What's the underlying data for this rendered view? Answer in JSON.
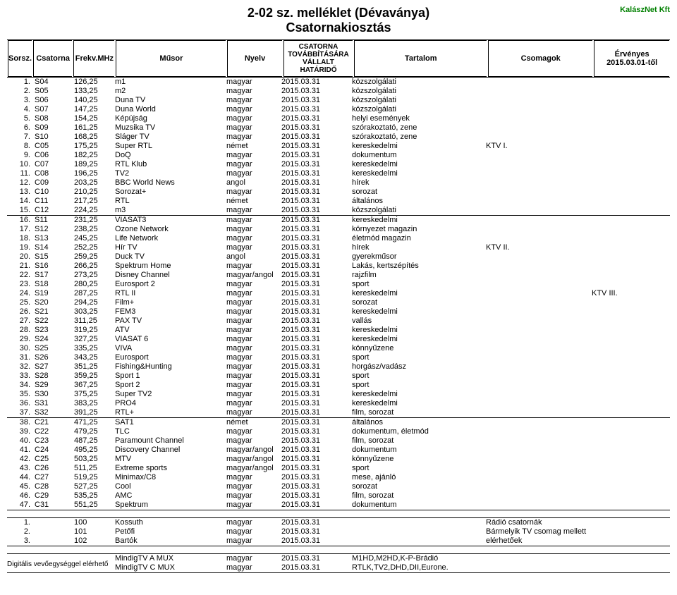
{
  "title1": "2-02 sz. melléklet (Dévaványa)",
  "title2": "Csatornakiosztás",
  "company": "KalászNet Kft",
  "ervenyes": "Érvényes 2015.03.01-től",
  "header": {
    "sorsz": "Sorsz.",
    "csatorna": "Csatorna",
    "frekv": "Frekv.MHz",
    "musor": "Műsor",
    "nyelv": "Nyelv",
    "hatarido": "CSATORNA TOVÁBBÍTÁSÁRA VÁLLALT HATÁRIDŐ",
    "tartalom": "Tartalom",
    "csomagok": "Csomagok"
  },
  "rows1": [
    {
      "n": "1.",
      "cs": "S04",
      "f": "126,25",
      "m": "m1",
      "ny": "magyar",
      "h": "2015.03.31",
      "t": "közszolgálati",
      "p": ""
    },
    {
      "n": "2.",
      "cs": "S05",
      "f": "133,25",
      "m": "m2",
      "ny": "magyar",
      "h": "2015.03.31",
      "t": "közszolgálati",
      "p": ""
    },
    {
      "n": "3.",
      "cs": "S06",
      "f": "140,25",
      "m": "Duna TV",
      "ny": "magyar",
      "h": "2015.03.31",
      "t": "közszolgálati",
      "p": ""
    },
    {
      "n": "4.",
      "cs": "S07",
      "f": "147,25",
      "m": "Duna World",
      "ny": "magyar",
      "h": "2015.03.31",
      "t": "közszolgálati",
      "p": ""
    },
    {
      "n": "5.",
      "cs": "S08",
      "f": "154,25",
      "m": "Képújság",
      "ny": "magyar",
      "h": "2015.03.31",
      "t": "helyi események",
      "p": ""
    },
    {
      "n": "6.",
      "cs": "S09",
      "f": "161,25",
      "m": "Muzsika TV",
      "ny": "magyar",
      "h": "2015.03.31",
      "t": "szórakoztató, zene",
      "p": ""
    },
    {
      "n": "7.",
      "cs": "S10",
      "f": "168,25",
      "m": "Sláger TV",
      "ny": "magyar",
      "h": "2015.03.31",
      "t": "szórakoztató, zene",
      "p": ""
    },
    {
      "n": "8.",
      "cs": "C05",
      "f": "175,25",
      "m": "Super RTL",
      "ny": "német",
      "h": "2015.03.31",
      "t": "kereskedelmi",
      "p": "KTV I."
    },
    {
      "n": "9.",
      "cs": "C06",
      "f": "182,25",
      "m": "DoQ",
      "ny": "magyar",
      "h": "2015.03.31",
      "t": "dokumentum",
      "p": ""
    },
    {
      "n": "10.",
      "cs": "C07",
      "f": "189,25",
      "m": "RTL Klub",
      "ny": "magyar",
      "h": "2015.03.31",
      "t": "kereskedelmi",
      "p": ""
    },
    {
      "n": "11.",
      "cs": "C08",
      "f": "196,25",
      "m": "TV2",
      "ny": "magyar",
      "h": "2015.03.31",
      "t": "kereskedelmi",
      "p": ""
    },
    {
      "n": "12.",
      "cs": "C09",
      "f": "203,25",
      "m": "BBC World News",
      "ny": "angol",
      "h": "2015.03.31",
      "t": "hírek",
      "p": ""
    },
    {
      "n": "13.",
      "cs": "C10",
      "f": "210,25",
      "m": "Sorozat+",
      "ny": "magyar",
      "h": "2015.03.31",
      "t": "sorozat",
      "p": ""
    },
    {
      "n": "14.",
      "cs": "C11",
      "f": "217,25",
      "m": "RTL",
      "ny": "német",
      "h": "2015.03.31",
      "t": "általános",
      "p": ""
    },
    {
      "n": "15.",
      "cs": "C12",
      "f": "224,25",
      "m": "m3",
      "ny": "magyar",
      "h": "2015.03.31",
      "t": "közszolgálati",
      "p": ""
    }
  ],
  "rows2": [
    {
      "n": "16.",
      "cs": "S11",
      "f": "231,25",
      "m": "VIASAT3",
      "ny": "magyar",
      "h": "2015.03.31",
      "t": "kereskedelmi",
      "p": "",
      "e": ""
    },
    {
      "n": "17.",
      "cs": "S12",
      "f": "238,25",
      "m": "Ozone Network",
      "ny": "magyar",
      "h": "2015.03.31",
      "t": "környezet magazin",
      "p": "",
      "e": ""
    },
    {
      "n": "18.",
      "cs": "S13",
      "f": "245,25",
      "m": "Life Network",
      "ny": "magyar",
      "h": "2015.03.31",
      "t": "életmód magazin",
      "p": "",
      "e": ""
    },
    {
      "n": "19.",
      "cs": "S14",
      "f": "252,25",
      "m": "Hír TV",
      "ny": "magyar",
      "h": "2015.03.31",
      "t": "hírek",
      "p": "KTV II.",
      "e": ""
    },
    {
      "n": "20.",
      "cs": "S15",
      "f": "259,25",
      "m": "Duck TV",
      "ny": "angol",
      "h": "2015.03.31",
      "t": "gyerekműsor",
      "p": "",
      "e": ""
    },
    {
      "n": "21.",
      "cs": "S16",
      "f": "266,25",
      "m": "Spektrum Home",
      "ny": "magyar",
      "h": "2015.03.31",
      "t": "Lakás, kertszépítés",
      "p": "",
      "e": ""
    },
    {
      "n": "22.",
      "cs": "S17",
      "f": "273,25",
      "m": "Disney Channel",
      "ny": "magyar/angol",
      "h": "2015.03.31",
      "t": "rajzfilm",
      "p": "",
      "e": ""
    },
    {
      "n": "23.",
      "cs": "S18",
      "f": "280,25",
      "m": "Eurosport 2",
      "ny": "magyar",
      "h": "2015.03.31",
      "t": "sport",
      "p": "",
      "e": ""
    },
    {
      "n": "24.",
      "cs": "S19",
      "f": "287,25",
      "m": "RTL II",
      "ny": "magyar",
      "h": "2015.03.31",
      "t": "kereskedelmi",
      "p": "",
      "e": "KTV III."
    },
    {
      "n": "25.",
      "cs": "S20",
      "f": "294,25",
      "m": "Film+",
      "ny": "magyar",
      "h": "2015.03.31",
      "t": "sorozat",
      "p": "",
      "e": ""
    },
    {
      "n": "26.",
      "cs": "S21",
      "f": "303,25",
      "m": "FEM3",
      "ny": "magyar",
      "h": "2015.03.31",
      "t": "kereskedelmi",
      "p": "",
      "e": ""
    },
    {
      "n": "27.",
      "cs": "S22",
      "f": "311,25",
      "m": "PAX TV",
      "ny": "magyar",
      "h": "2015.03.31",
      "t": "vallás",
      "p": "",
      "e": ""
    },
    {
      "n": "28.",
      "cs": "S23",
      "f": "319,25",
      "m": "ATV",
      "ny": "magyar",
      "h": "2015.03.31",
      "t": "kereskedelmi",
      "p": "",
      "e": ""
    },
    {
      "n": "29.",
      "cs": "S24",
      "f": "327,25",
      "m": "VIASAT 6",
      "ny": "magyar",
      "h": "2015.03.31",
      "t": "kereskedelmi",
      "p": "",
      "e": ""
    },
    {
      "n": "30.",
      "cs": "S25",
      "f": "335,25",
      "m": "VIVA",
      "ny": "magyar",
      "h": "2015.03.31",
      "t": "könnyűzene",
      "p": "",
      "e": ""
    },
    {
      "n": "31.",
      "cs": "S26",
      "f": "343,25",
      "m": "Eurosport",
      "ny": "magyar",
      "h": "2015.03.31",
      "t": "sport",
      "p": "",
      "e": ""
    },
    {
      "n": "32.",
      "cs": "S27",
      "f": "351,25",
      "m": "Fishing&Hunting",
      "ny": "magyar",
      "h": "2015.03.31",
      "t": "horgász/vadász",
      "p": "",
      "e": ""
    },
    {
      "n": "33.",
      "cs": "S28",
      "f": "359,25",
      "m": "Sport 1",
      "ny": "magyar",
      "h": "2015.03.31",
      "t": "sport",
      "p": "",
      "e": ""
    },
    {
      "n": "34.",
      "cs": "S29",
      "f": "367,25",
      "m": "Sport 2",
      "ny": "magyar",
      "h": "2015.03.31",
      "t": "sport",
      "p": "",
      "e": ""
    },
    {
      "n": "35.",
      "cs": "S30",
      "f": "375,25",
      "m": "Super TV2",
      "ny": "magyar",
      "h": "2015.03.31",
      "t": "kereskedelmi",
      "p": "",
      "e": ""
    },
    {
      "n": "36.",
      "cs": "S31",
      "f": "383,25",
      "m": "PRO4",
      "ny": "magyar",
      "h": "2015.03.31",
      "t": "kereskedelmi",
      "p": "",
      "e": ""
    },
    {
      "n": "37.",
      "cs": "S32",
      "f": "391,25",
      "m": "RTL+",
      "ny": "magyar",
      "h": "2015.03.31",
      "t": "film, sorozat",
      "p": "",
      "e": ""
    }
  ],
  "rows3": [
    {
      "n": "38.",
      "cs": "C21",
      "f": "471,25",
      "m": "SAT1",
      "ny": "német",
      "h": "2015.03.31",
      "t": "általános",
      "p": ""
    },
    {
      "n": "39.",
      "cs": "C22",
      "f": "479,25",
      "m": "TLC",
      "ny": "magyar",
      "h": "2015.03.31",
      "t": "dokumentum, életmód",
      "p": ""
    },
    {
      "n": "40.",
      "cs": "C23",
      "f": "487,25",
      "m": "Paramount Channel",
      "ny": "magyar",
      "h": "2015.03.31",
      "t": "film, sorozat",
      "p": ""
    },
    {
      "n": "41.",
      "cs": "C24",
      "f": "495,25",
      "m": "Discovery Channel",
      "ny": "magyar/angol",
      "h": "2015.03.31",
      "t": "dokumentum",
      "p": ""
    },
    {
      "n": "42.",
      "cs": "C25",
      "f": "503,25",
      "m": "MTV",
      "ny": "magyar/angol",
      "h": "2015.03.31",
      "t": "könnyűzene",
      "p": ""
    },
    {
      "n": "43.",
      "cs": "C26",
      "f": "511,25",
      "m": "Extreme sports",
      "ny": "magyar/angol",
      "h": "2015.03.31",
      "t": "sport",
      "p": ""
    },
    {
      "n": "44.",
      "cs": "C27",
      "f": "519,25",
      "m": "Minimax/C8",
      "ny": "magyar",
      "h": "2015.03.31",
      "t": "mese, ajánló",
      "p": ""
    },
    {
      "n": "45.",
      "cs": "C28",
      "f": "527,25",
      "m": "Cool",
      "ny": "magyar",
      "h": "2015.03.31",
      "t": "sorozat",
      "p": ""
    },
    {
      "n": "46.",
      "cs": "C29",
      "f": "535,25",
      "m": "AMC",
      "ny": "magyar",
      "h": "2015.03.31",
      "t": "film, sorozat",
      "p": ""
    },
    {
      "n": "47.",
      "cs": "C31",
      "f": "551,25",
      "m": "Spektrum",
      "ny": "magyar",
      "h": "2015.03.31",
      "t": "dokumentum",
      "p": ""
    }
  ],
  "radioRows": [
    {
      "n": "1.",
      "cs": "",
      "f": "100",
      "m": "Kossuth",
      "ny": "magyar",
      "h": "2015.03.31",
      "t": "",
      "p": "Rádió csatornák"
    },
    {
      "n": "2.",
      "cs": "",
      "f": "101",
      "m": "Petőfi",
      "ny": "magyar",
      "h": "2015.03.31",
      "t": "",
      "p": "Bármelyik TV csomag mellett"
    },
    {
      "n": "3.",
      "cs": "",
      "f": "102",
      "m": "Bartók",
      "ny": "magyar",
      "h": "2015.03.31",
      "t": "",
      "p": "elérhetőek"
    }
  ],
  "digitalis": "Digitális vevőegységgel elérhető",
  "muxRows": [
    {
      "m": "MindigTV A MUX",
      "ny": "magyar",
      "h": "2015.03.31",
      "t": "M1HD,M2HD,K-P-Brádió"
    },
    {
      "m": "MindigTV C MUX",
      "ny": "magyar",
      "h": "2015.03.31",
      "t": "RTLK,TV2,DHD,DII,Eurone."
    }
  ]
}
